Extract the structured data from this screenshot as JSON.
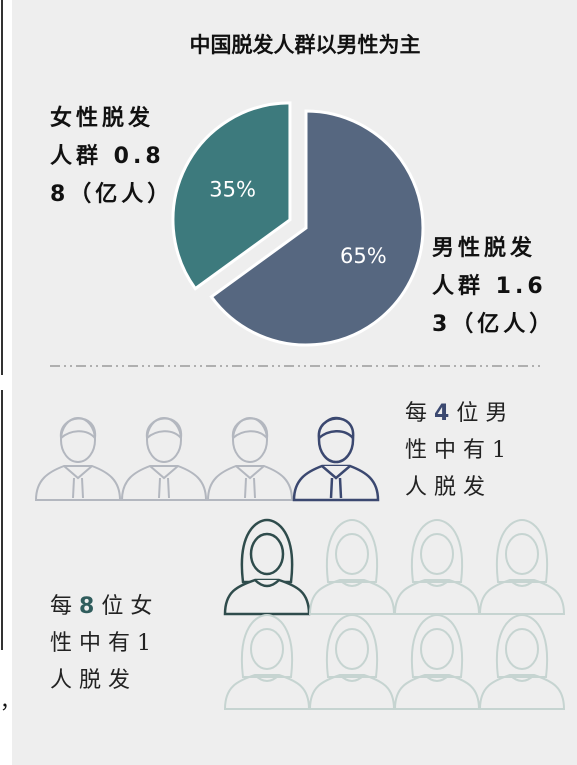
{
  "chart_data": {
    "type": "pie",
    "title": "中国脱发人群以男性为主",
    "categories": [
      "女性脱发人群 0.88（亿人）",
      "男性脱发人群 1.63（亿人）"
    ],
    "values": [
      35,
      65
    ],
    "value_labels": [
      "35%",
      "65%"
    ],
    "colors": [
      "#3d7a7d",
      "#566780"
    ],
    "explode": [
      true,
      false
    ]
  },
  "male_stat": {
    "prefix": "每",
    "count": 4,
    "middle": "位男性中有",
    "affected": 1,
    "suffix": "人脱发"
  },
  "female_stat": {
    "prefix": "每",
    "count": 8,
    "middle": "位女性中有",
    "affected": 1,
    "suffix": "人脱发"
  },
  "fragment": "，"
}
